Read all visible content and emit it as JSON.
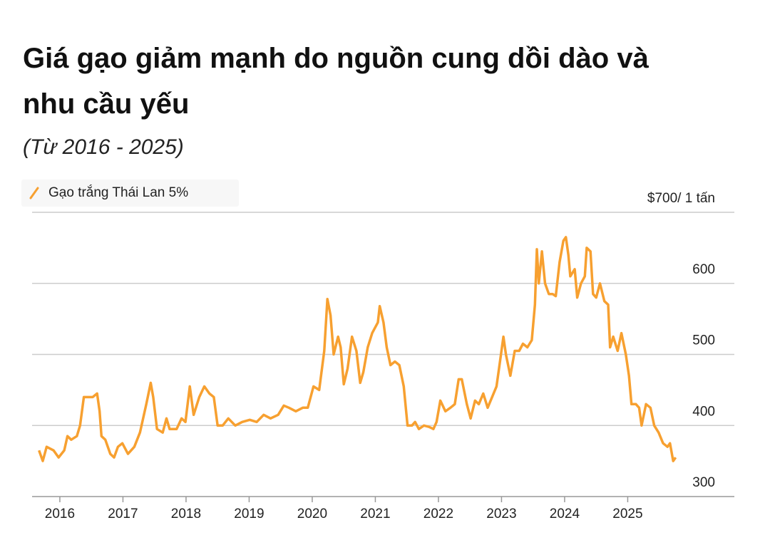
{
  "chart_data": {
    "type": "line",
    "title": "Giá gạo giảm mạnh do nguồn cung dồi dào và nhu cầu yếu",
    "subtitle": "(Từ 2016 - 2025)",
    "legend": "top-left",
    "grid": true,
    "xlim": [
      2015.56,
      2026.69
    ],
    "xticks": [
      2016,
      2017,
      2018,
      2019,
      2020,
      2021,
      2022,
      2023,
      2024,
      2025
    ],
    "ylim": [
      300,
      700
    ],
    "yticks": [
      300,
      400,
      500,
      600,
      {
        "value": 700,
        "label": "$700/ 1 tấn"
      }
    ],
    "x": [
      2015.67,
      2015.73,
      2015.79,
      2015.9,
      2015.98,
      2016.07,
      2016.12,
      2016.18,
      2016.27,
      2016.32,
      2016.38,
      2016.52,
      2016.59,
      2016.63,
      2016.66,
      2016.72,
      2016.8,
      2016.86,
      2016.92,
      2016.99,
      2017.08,
      2017.18,
      2017.27,
      2017.37,
      2017.44,
      2017.48,
      2017.54,
      2017.63,
      2017.69,
      2017.74,
      2017.85,
      2017.93,
      2017.99,
      2018.06,
      2018.12,
      2018.21,
      2018.29,
      2018.37,
      2018.44,
      2018.5,
      2018.58,
      2018.67,
      2018.78,
      2018.89,
      2019.01,
      2019.12,
      2019.23,
      2019.34,
      2019.46,
      2019.55,
      2019.63,
      2019.74,
      2019.85,
      2019.93,
      2020.02,
      2020.11,
      2020.19,
      2020.24,
      2020.29,
      2020.34,
      2020.41,
      2020.45,
      2020.5,
      2020.56,
      2020.63,
      2020.7,
      2020.76,
      2020.81,
      2020.88,
      2020.95,
      2021.04,
      2021.07,
      2021.13,
      2021.18,
      2021.24,
      2021.31,
      2021.38,
      2021.45,
      2021.51,
      2021.58,
      2021.63,
      2021.69,
      2021.77,
      2021.85,
      2021.92,
      2021.97,
      2022.03,
      2022.11,
      2022.19,
      2022.26,
      2022.32,
      2022.37,
      2022.45,
      2022.51,
      2022.58,
      2022.64,
      2022.71,
      2022.78,
      2022.85,
      2022.92,
      2022.96,
      2023.03,
      2023.07,
      2023.14,
      2023.21,
      2023.28,
      2023.34,
      2023.41,
      2023.48,
      2023.53,
      2023.56,
      2023.59,
      2023.64,
      2023.69,
      2023.75,
      2023.81,
      2023.86,
      2023.92,
      2023.98,
      2024.02,
      2024.06,
      2024.09,
      2024.16,
      2024.2,
      2024.26,
      2024.32,
      2024.35,
      2024.41,
      2024.45,
      2024.5,
      2024.56,
      2024.63,
      2024.69,
      2024.72,
      2024.77,
      2024.84,
      2024.9,
      2024.97,
      2025.02,
      2025.06,
      2025.13,
      2025.18,
      2025.22,
      2025.29,
      2025.36,
      2025.42,
      2025.49,
      2025.56,
      2025.63,
      2025.67,
      2025.72,
      2025.76
    ],
    "series": [
      {
        "name": "Gạo trắng Thái Lan 5%",
        "color": "#f7a030",
        "values": [
          365,
          350,
          370,
          365,
          355,
          365,
          385,
          380,
          385,
          400,
          440,
          440,
          445,
          420,
          385,
          380,
          360,
          355,
          370,
          375,
          360,
          370,
          390,
          430,
          460,
          440,
          395,
          390,
          410,
          395,
          395,
          410,
          405,
          455,
          415,
          440,
          455,
          445,
          440,
          400,
          400,
          410,
          400,
          405,
          408,
          405,
          415,
          410,
          415,
          428,
          425,
          420,
          425,
          425,
          455,
          450,
          505,
          578,
          555,
          500,
          525,
          510,
          458,
          480,
          525,
          505,
          460,
          475,
          510,
          530,
          545,
          568,
          545,
          510,
          485,
          490,
          485,
          455,
          400,
          400,
          405,
          395,
          400,
          398,
          395,
          405,
          435,
          420,
          425,
          430,
          465,
          465,
          430,
          410,
          435,
          430,
          445,
          425,
          440,
          455,
          480,
          525,
          500,
          470,
          505,
          505,
          515,
          510,
          520,
          570,
          648,
          600,
          645,
          600,
          585,
          585,
          582,
          630,
          660,
          665,
          640,
          610,
          620,
          580,
          600,
          610,
          650,
          645,
          585,
          580,
          600,
          575,
          570,
          510,
          525,
          505,
          530,
          500,
          470,
          430,
          430,
          425,
          400,
          430,
          425,
          400,
          390,
          375,
          370,
          375,
          350,
          355
        ]
      }
    ]
  }
}
